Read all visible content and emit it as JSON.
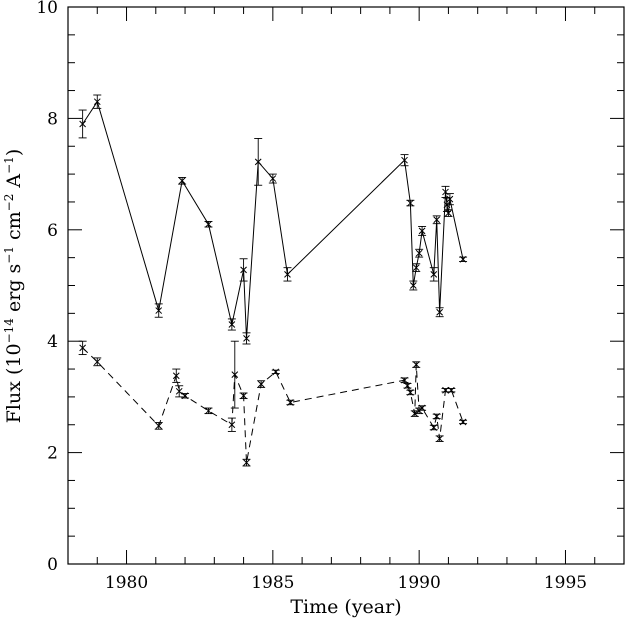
{
  "chart_data": {
    "type": "line",
    "title": "",
    "xlabel": "Time (year)",
    "ylabel_parts": {
      "prefix": "Flux (10",
      "exp1": "−14",
      "mid1": " erg s",
      "exp2": "−1",
      "mid2": " cm",
      "exp3": "−2",
      "mid3": " A",
      "exp4": "−1",
      "suffix": ")"
    },
    "xlim": [
      1978,
      1997
    ],
    "ylim": [
      0,
      10
    ],
    "x_ticks": [
      1980,
      1985,
      1990,
      1995
    ],
    "y_ticks": [
      0,
      2,
      4,
      6,
      8,
      10
    ],
    "grid": false,
    "series": [
      {
        "line_style": "solid",
        "points": [
          {
            "x": 1978.5,
            "y": 7.9,
            "err": 0.25
          },
          {
            "x": 1979.0,
            "y": 8.3,
            "err": 0.12
          },
          {
            "x": 1981.1,
            "y": 4.55,
            "err": 0.12
          },
          {
            "x": 1981.9,
            "y": 6.88,
            "err": 0.06
          },
          {
            "x": 1982.8,
            "y": 6.1,
            "err": 0.05
          },
          {
            "x": 1983.6,
            "y": 4.3,
            "err": 0.1
          },
          {
            "x": 1984.0,
            "y": 5.28,
            "err": 0.2
          },
          {
            "x": 1984.1,
            "y": 4.05,
            "err": 0.1
          },
          {
            "x": 1984.5,
            "y": 7.22,
            "err": 0.42
          },
          {
            "x": 1985.0,
            "y": 6.92,
            "err": 0.08
          },
          {
            "x": 1985.5,
            "y": 5.2,
            "err": 0.12
          },
          {
            "x": 1989.5,
            "y": 7.25,
            "err": 0.1
          },
          {
            "x": 1989.7,
            "y": 6.48,
            "err": 0.05
          },
          {
            "x": 1989.8,
            "y": 5.0,
            "err": 0.08
          },
          {
            "x": 1989.9,
            "y": 5.32,
            "err": 0.07
          },
          {
            "x": 1990.0,
            "y": 5.58,
            "err": 0.07
          },
          {
            "x": 1990.1,
            "y": 5.98,
            "err": 0.08
          },
          {
            "x": 1990.5,
            "y": 5.2,
            "err": 0.12
          },
          {
            "x": 1990.6,
            "y": 6.18,
            "err": 0.07
          },
          {
            "x": 1990.7,
            "y": 4.52,
            "err": 0.08
          },
          {
            "x": 1990.9,
            "y": 6.68,
            "err": 0.1
          },
          {
            "x": 1990.95,
            "y": 6.45,
            "err": 0.12
          },
          {
            "x": 1991.0,
            "y": 6.3,
            "err": 0.06
          },
          {
            "x": 1991.05,
            "y": 6.55,
            "err": 0.1
          },
          {
            "x": 1991.5,
            "y": 5.47,
            "err": 0.04
          }
        ]
      },
      {
        "line_style": "dashed",
        "points": [
          {
            "x": 1978.5,
            "y": 3.88,
            "err": 0.12
          },
          {
            "x": 1979.0,
            "y": 3.63,
            "err": 0.07
          },
          {
            "x": 1981.1,
            "y": 2.48,
            "err": 0.06
          },
          {
            "x": 1981.7,
            "y": 3.38,
            "err": 0.12
          },
          {
            "x": 1981.8,
            "y": 3.1,
            "err": 0.1
          },
          {
            "x": 1982.0,
            "y": 3.02,
            "err": 0.04
          },
          {
            "x": 1982.8,
            "y": 2.75,
            "err": 0.05
          },
          {
            "x": 1983.6,
            "y": 2.5,
            "err": 0.12
          },
          {
            "x": 1983.7,
            "y": 3.4,
            "err": 0.6
          },
          {
            "x": 1984.0,
            "y": 3.02,
            "err": 0.05
          },
          {
            "x": 1984.1,
            "y": 1.82,
            "err": 0.06
          },
          {
            "x": 1984.6,
            "y": 3.23,
            "err": 0.06
          },
          {
            "x": 1985.1,
            "y": 3.45,
            "err": 0.03
          },
          {
            "x": 1985.6,
            "y": 2.9,
            "err": 0.04
          },
          {
            "x": 1989.5,
            "y": 3.3,
            "err": 0.04
          },
          {
            "x": 1989.6,
            "y": 3.2,
            "err": 0.04
          },
          {
            "x": 1989.7,
            "y": 3.08,
            "err": 0.04
          },
          {
            "x": 1989.85,
            "y": 2.7,
            "err": 0.05
          },
          {
            "x": 1989.9,
            "y": 3.58,
            "err": 0.05
          },
          {
            "x": 1990.0,
            "y": 2.75,
            "err": 0.05
          },
          {
            "x": 1990.1,
            "y": 2.8,
            "err": 0.04
          },
          {
            "x": 1990.5,
            "y": 2.45,
            "err": 0.04
          },
          {
            "x": 1990.6,
            "y": 2.65,
            "err": 0.04
          },
          {
            "x": 1990.7,
            "y": 2.25,
            "err": 0.05
          },
          {
            "x": 1990.9,
            "y": 3.12,
            "err": 0.03
          },
          {
            "x": 1991.1,
            "y": 3.12,
            "err": 0.03
          },
          {
            "x": 1991.5,
            "y": 2.55,
            "err": 0.03
          }
        ]
      }
    ]
  }
}
